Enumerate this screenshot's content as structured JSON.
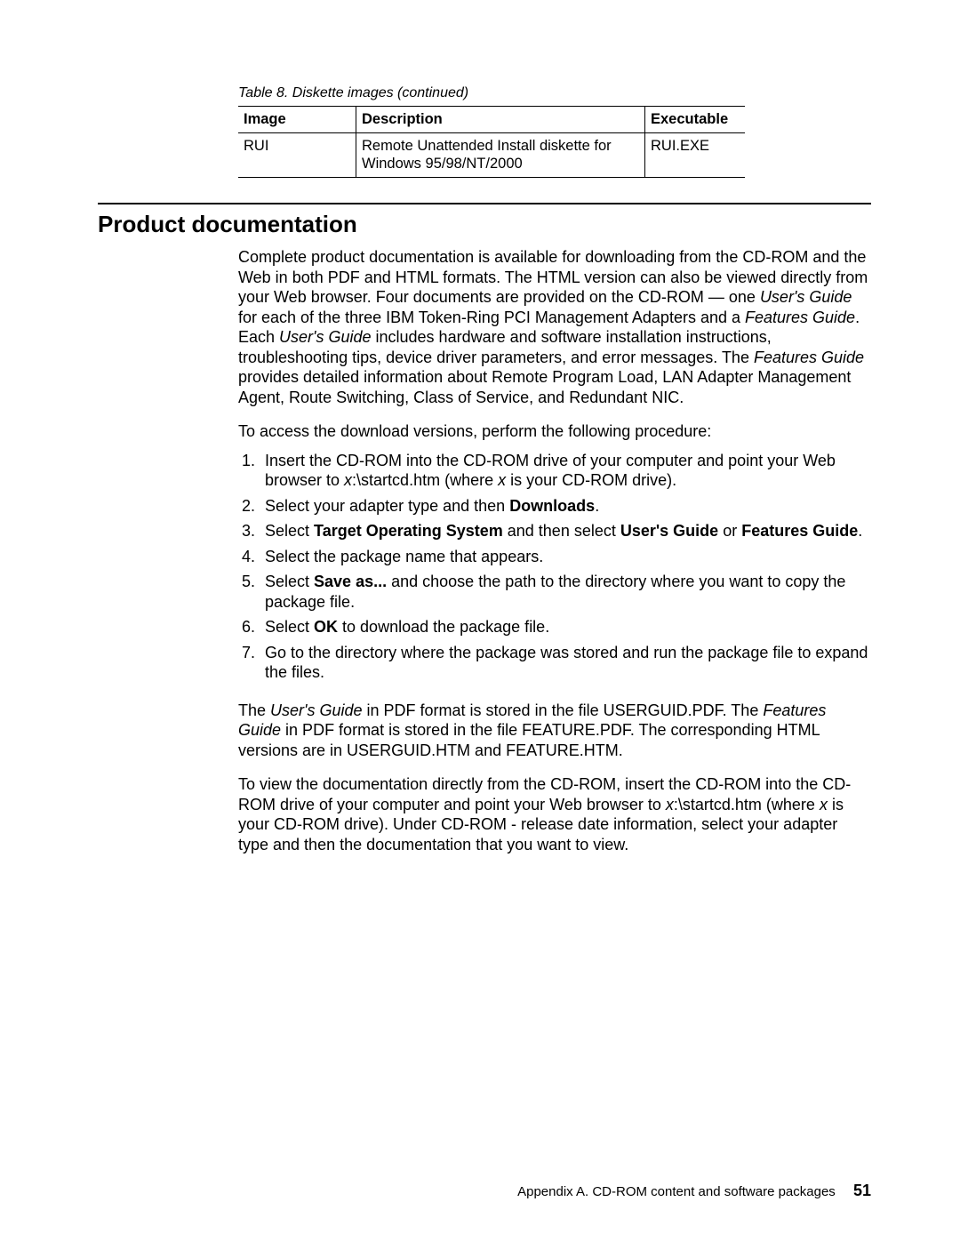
{
  "table": {
    "caption": "Table 8. Diskette images  (continued)",
    "columns": [
      "Image",
      "Description",
      "Executable"
    ],
    "rows": [
      [
        "RUI",
        "Remote Unattended Install diskette for Windows 95/98/NT/2000",
        "RUI.EXE"
      ]
    ]
  },
  "section": {
    "title": "Product documentation",
    "intro_parts": [
      {
        "t": "Complete product documentation is available for downloading from the CD-ROM and the Web in both PDF and HTML formats. The HTML version can also be viewed directly from your Web browser. Four documents are provided on the CD-ROM — one "
      },
      {
        "t": "User's Guide",
        "i": true
      },
      {
        "t": " for each of the three IBM Token-Ring PCI Management Adapters and a "
      },
      {
        "t": "Features Guide",
        "i": true
      },
      {
        "t": ". Each "
      },
      {
        "t": "User's Guide",
        "i": true
      },
      {
        "t": " includes hardware and software installation instructions, troubleshooting tips, device driver parameters, and error messages. The "
      },
      {
        "t": "Features Guide",
        "i": true
      },
      {
        "t": " provides detailed information about Remote Program Load, LAN Adapter Management Agent, Route Switching, Class of Service, and Redundant NIC."
      }
    ],
    "lead_in": "To access the download versions, perform the following procedure:",
    "steps": [
      [
        {
          "t": "Insert the CD-ROM into the CD-ROM drive of your computer and point your Web browser to "
        },
        {
          "t": "x",
          "i": true
        },
        {
          "t": ":\\startcd.htm (where "
        },
        {
          "t": "x",
          "i": true
        },
        {
          "t": " is your CD-ROM drive)."
        }
      ],
      [
        {
          "t": "Select your adapter type and then "
        },
        {
          "t": "Downloads",
          "b": true
        },
        {
          "t": "."
        }
      ],
      [
        {
          "t": "Select "
        },
        {
          "t": "Target Operating System",
          "b": true
        },
        {
          "t": " and then select "
        },
        {
          "t": "User's Guide",
          "b": true
        },
        {
          "t": " or "
        },
        {
          "t": "Features Guide",
          "b": true
        },
        {
          "t": "."
        }
      ],
      [
        {
          "t": "Select the package name that appears."
        }
      ],
      [
        {
          "t": "Select "
        },
        {
          "t": "Save as...",
          "b": true
        },
        {
          "t": " and choose the path to the directory where you want to copy the package file."
        }
      ],
      [
        {
          "t": "Select "
        },
        {
          "t": "OK",
          "b": true
        },
        {
          "t": " to download the package file."
        }
      ],
      [
        {
          "t": "Go to the directory where the package was stored and run the package file to expand the files."
        }
      ]
    ],
    "pdf_note_parts": [
      {
        "t": "The "
      },
      {
        "t": "User's Guide",
        "i": true
      },
      {
        "t": " in PDF format is stored in the file USERGUID.PDF. The "
      },
      {
        "t": "Features Guide",
        "i": true
      },
      {
        "t": " in PDF format is stored in the file FEATURE.PDF. The corresponding HTML versions are in USERGUID.HTM and FEATURE.HTM."
      }
    ],
    "view_note_parts": [
      {
        "t": "To view the documentation directly from the CD-ROM, insert the CD-ROM into the CD-ROM drive of your computer and point your Web browser to "
      },
      {
        "t": "x",
        "i": true
      },
      {
        "t": ":\\startcd.htm (where "
      },
      {
        "t": "x",
        "i": true
      },
      {
        "t": " is your CD-ROM drive). Under CD-ROM - release date information, select your adapter type and then the documentation that you want to view."
      }
    ]
  },
  "footer": {
    "text": "Appendix A. CD-ROM content and software packages",
    "page": "51"
  }
}
